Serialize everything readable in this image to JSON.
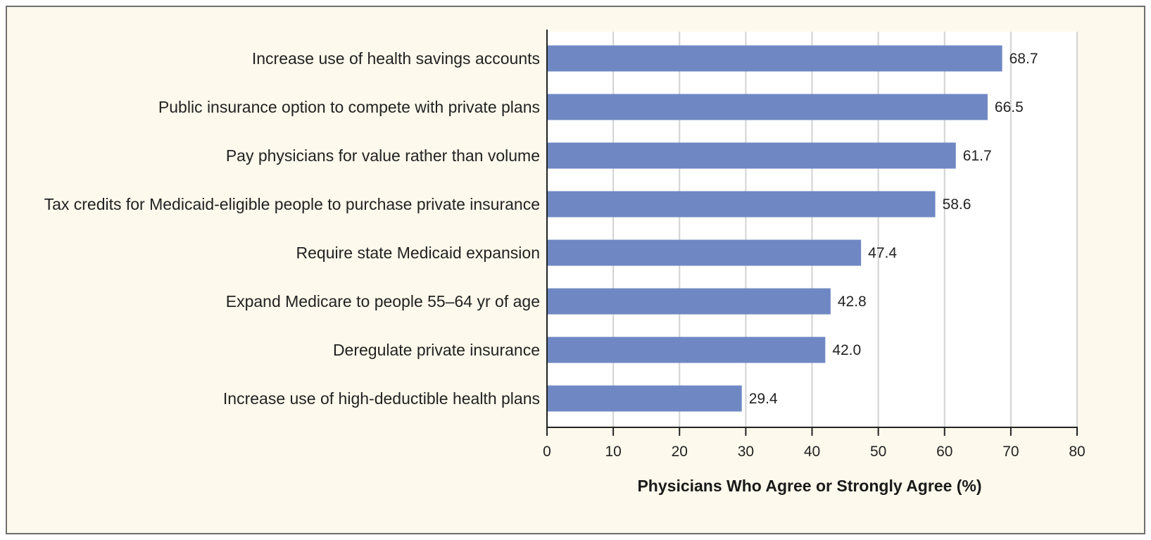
{
  "chart_data": {
    "type": "bar",
    "orientation": "horizontal",
    "title": "",
    "xlabel": "Physicians Who Agree or Strongly Agree (%)",
    "ylabel": "",
    "xlim": [
      0,
      80
    ],
    "xticks": [
      0,
      10,
      20,
      30,
      40,
      50,
      60,
      70,
      80
    ],
    "grid": "vertical",
    "categories": [
      "Increase use of health savings accounts",
      "Public insurance option to compete with private plans",
      "Pay physicians for value rather than volume",
      "Tax credits for Medicaid-eligible people to purchase private insurance",
      "Require state Medicaid expansion",
      "Expand Medicare to people 55–64 yr of age",
      "Deregulate private insurance",
      "Increase use of high-deductible health plans"
    ],
    "values": [
      68.7,
      66.5,
      61.7,
      58.6,
      47.4,
      42.8,
      42.0,
      29.4
    ],
    "value_labels": [
      "68.7",
      "66.5",
      "61.7",
      "58.6",
      "47.4",
      "42.8",
      "42.0",
      "29.4"
    ],
    "colors": {
      "bar": "#6f88c4",
      "panel_background": "#fdf9ec",
      "plot_background": "#ffffff",
      "gridline": "#d2d2d2",
      "axis": "#222222",
      "border": "#6e6e6e"
    }
  }
}
